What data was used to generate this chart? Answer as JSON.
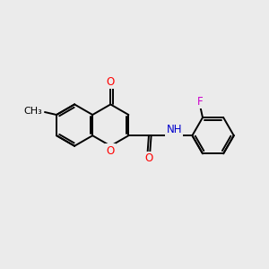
{
  "background_color": "#ebebeb",
  "bond_color": "#000000",
  "bond_width": 1.4,
  "atom_colors": {
    "O": "#ff0000",
    "N": "#0000cc",
    "F": "#cc00cc",
    "C": "#000000"
  },
  "font_size": 8.5,
  "figsize": [
    3.0,
    3.0
  ],
  "dpi": 100
}
